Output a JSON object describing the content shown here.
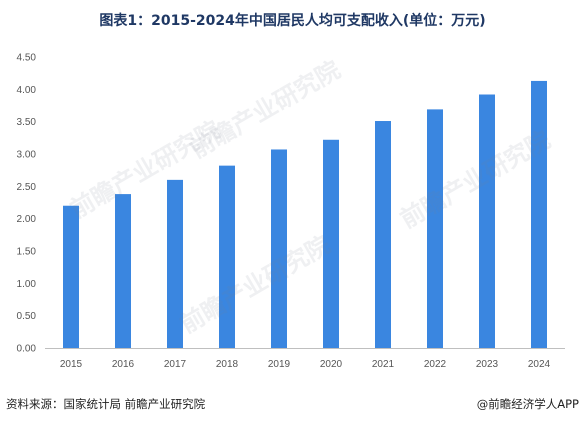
{
  "title": "图表1：2015-2024年中国居民人均可支配收入(单位：万元)",
  "chart_data": {
    "type": "bar",
    "categories": [
      "2015",
      "2016",
      "2017",
      "2018",
      "2019",
      "2020",
      "2021",
      "2022",
      "2023",
      "2024"
    ],
    "values": [
      2.2,
      2.38,
      2.6,
      2.82,
      3.07,
      3.22,
      3.51,
      3.69,
      3.92,
      4.13
    ],
    "ylim": [
      0,
      4.5
    ],
    "yticks": [
      "0.00",
      "0.50",
      "1.00",
      "1.50",
      "2.00",
      "2.50",
      "3.00",
      "3.50",
      "4.00",
      "4.50"
    ],
    "bar_color": "#3a86e0",
    "grid": false,
    "title": "图表1：2015-2024年中国居民人均可支配收入(单位：万元)"
  },
  "footer": {
    "source": "资料来源：国家统计局 前瞻产业研究院",
    "credit": "@前瞻经济学人APP"
  },
  "watermark": {
    "text": "前瞻产业研究院"
  }
}
